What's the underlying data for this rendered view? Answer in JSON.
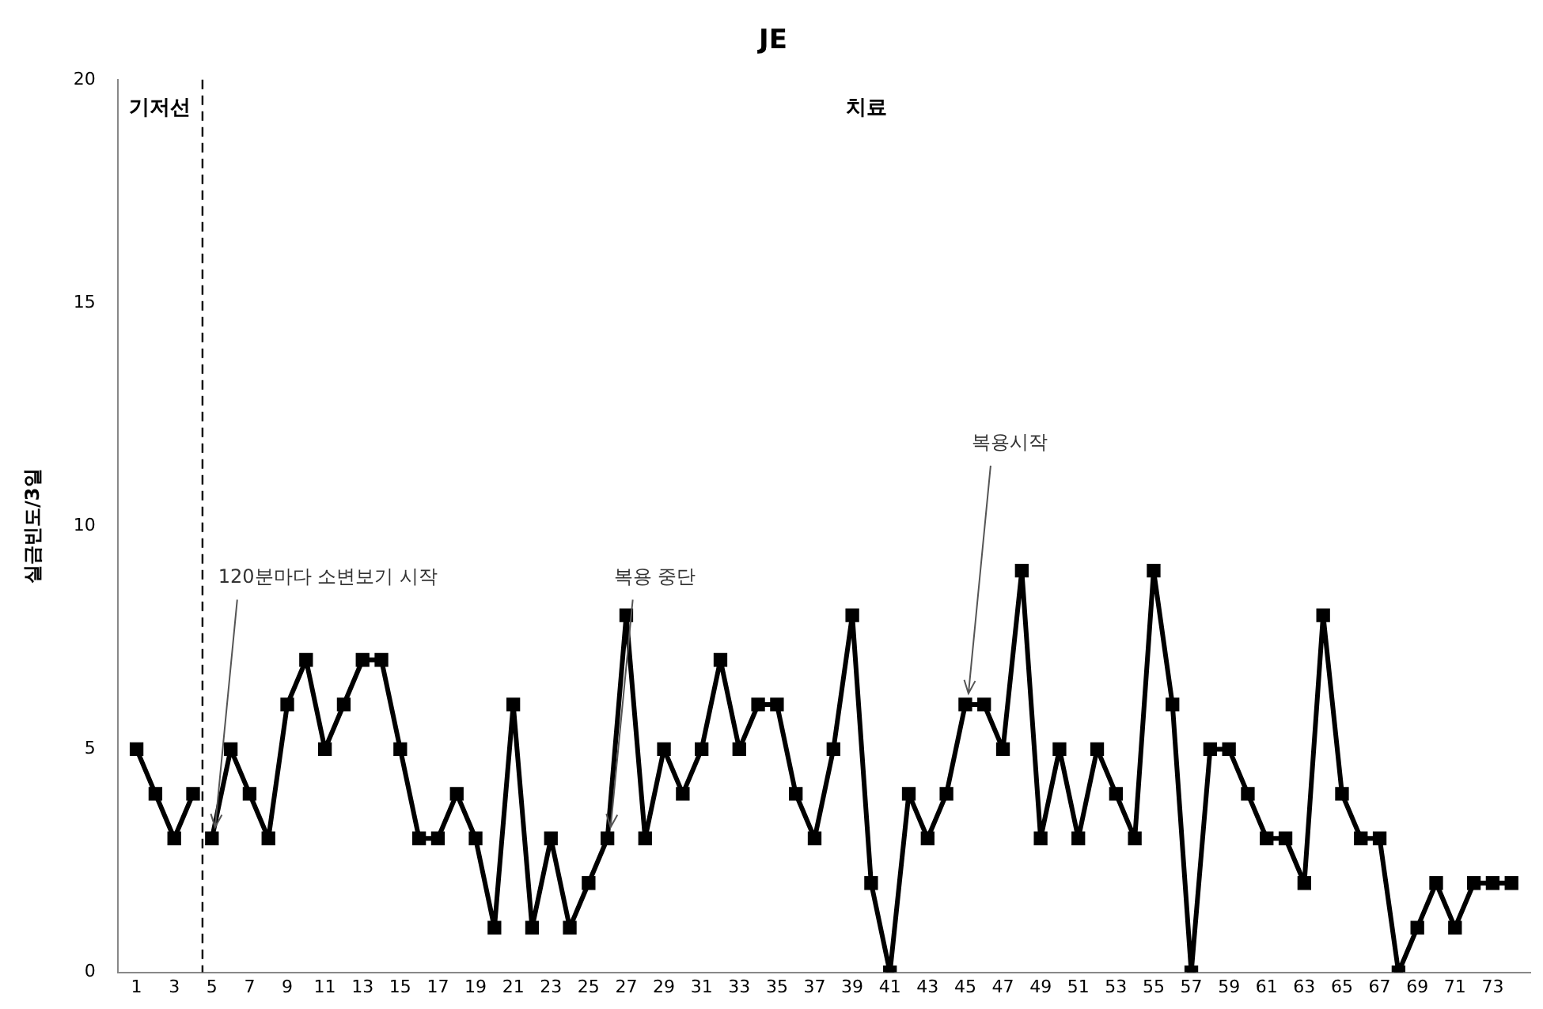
{
  "chart_data": {
    "type": "line",
    "title": "JE",
    "ylabel": "실금빈도/3일",
    "series": [
      {
        "color": "#000000",
        "x": [
          1,
          2,
          3,
          4
        ],
        "values": [
          5,
          4,
          3,
          4
        ]
      },
      {
        "color": "#000000",
        "x": [
          5,
          6,
          7,
          8,
          9,
          10,
          11,
          12,
          13,
          14,
          15,
          16,
          17,
          18,
          19,
          20,
          21,
          22,
          23,
          24,
          25,
          26,
          27,
          28,
          29,
          30,
          31,
          32,
          33,
          34,
          35,
          36,
          37,
          38,
          39,
          40,
          41,
          42,
          43,
          44,
          45,
          46,
          47,
          48,
          49,
          50,
          51,
          52,
          53,
          54,
          55,
          56,
          57,
          58,
          59,
          60,
          61,
          62,
          63,
          64,
          65,
          66,
          67,
          68,
          69,
          70,
          71,
          72,
          73,
          74
        ],
        "values": [
          3,
          5,
          4,
          3,
          6,
          7,
          5,
          6,
          7,
          7,
          5,
          3,
          3,
          4,
          3,
          1,
          6,
          1,
          3,
          1,
          2,
          3,
          8,
          3,
          5,
          4,
          5,
          7,
          5,
          6,
          6,
          4,
          3,
          5,
          8,
          2,
          0,
          4,
          3,
          4,
          6,
          6,
          5,
          9,
          3,
          5,
          3,
          5,
          4,
          3,
          9,
          6,
          0,
          5,
          5,
          4,
          3,
          3,
          2,
          8,
          4,
          3,
          3,
          0,
          1,
          2,
          1,
          2,
          2,
          2
        ]
      }
    ],
    "xlim": [
      0,
      75
    ],
    "xticks": [
      1,
      3,
      5,
      7,
      9,
      11,
      13,
      15,
      17,
      19,
      21,
      23,
      25,
      27,
      29,
      31,
      33,
      35,
      37,
      39,
      41,
      43,
      45,
      47,
      49,
      51,
      53,
      55,
      57,
      59,
      61,
      63,
      65,
      67,
      69,
      71,
      73
    ],
    "ylim": [
      0,
      20
    ],
    "yticks": [
      0,
      5,
      10,
      15,
      20
    ],
    "grid": false,
    "legend": false,
    "marker": "square",
    "line_style": "solid",
    "ref_lines": [
      {
        "axis": "x",
        "value": 4.5,
        "line_style": "dashed",
        "color": "#000000"
      }
    ],
    "annotations": [
      "기저선",
      "치료",
      {
        "text": "120분마다 소변보기 시작",
        "x": 5,
        "y": 3
      },
      {
        "text": "복용 중단",
        "x": 26,
        "y": 3
      },
      {
        "text": "복용시작",
        "x": 45,
        "y": 6
      }
    ]
  }
}
